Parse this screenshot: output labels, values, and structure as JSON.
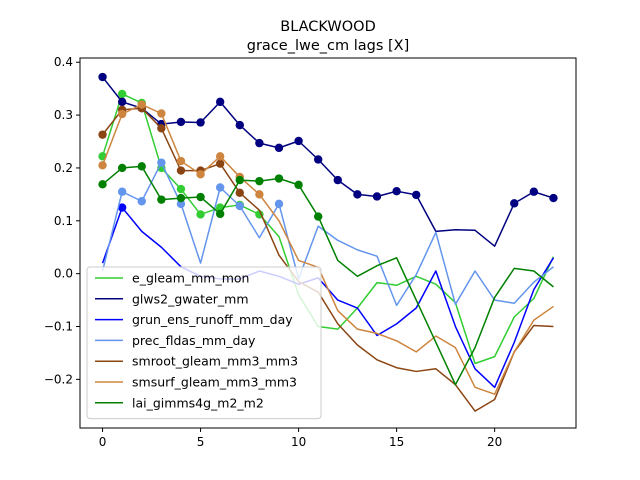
{
  "chart_data": {
    "type": "line",
    "title": "BLACKWOOD",
    "subtitle": "grace_lwe_cm lags [X]",
    "xlim": [
      -1.15,
      24.15
    ],
    "ylim": [
      -0.292,
      0.408
    ],
    "x_ticks": [
      0,
      5,
      10,
      15,
      20
    ],
    "y_ticks": [
      -0.2,
      -0.1,
      0.0,
      0.1,
      0.2,
      0.3,
      0.4
    ],
    "x_tick_labels": [
      "0",
      "5",
      "10",
      "15",
      "20"
    ],
    "y_tick_labels": [
      "−0.2",
      "−0.1",
      "0.0",
      "0.1",
      "0.2",
      "0.3",
      "0.4"
    ],
    "legend_position": "lower-left",
    "x": [
      0,
      1,
      2,
      3,
      4,
      5,
      6,
      7,
      8,
      9,
      10,
      11,
      12,
      13,
      14,
      15,
      16,
      17,
      18,
      19,
      20,
      21,
      22,
      23
    ],
    "series": [
      {
        "name": "e_gleam_mm_mon",
        "color": "#32cd32",
        "values": [
          0.222,
          0.34,
          0.323,
          0.2,
          0.16,
          0.112,
          0.125,
          0.13,
          0.112,
          0.07,
          -0.04,
          -0.1,
          -0.105,
          -0.065,
          -0.017,
          -0.022,
          -0.005,
          -0.02,
          -0.055,
          -0.17,
          -0.157,
          -0.082,
          -0.047,
          0.032
        ],
        "markers": [
          0,
          1,
          2,
          3,
          4,
          5,
          6,
          7,
          8
        ]
      },
      {
        "name": "glws2_gwater_mm",
        "color": "#000080",
        "values": [
          0.372,
          0.325,
          0.313,
          0.283,
          0.287,
          0.286,
          0.325,
          0.281,
          0.247,
          0.238,
          0.251,
          0.216,
          0.177,
          0.15,
          0.146,
          0.156,
          0.149,
          0.08,
          0.083,
          0.082,
          0.052,
          0.133,
          0.155,
          0.143
        ],
        "markers": [
          0,
          1,
          2,
          3,
          4,
          5,
          6,
          7,
          8,
          9,
          10,
          11,
          12,
          13,
          14,
          15,
          16,
          21,
          22,
          23
        ]
      },
      {
        "name": "grun_ens_runoff_mm_day",
        "color": "#0000ff",
        "values": [
          0.02,
          0.125,
          0.08,
          0.05,
          0.013,
          -0.005,
          -0.01,
          -0.01,
          0.005,
          -0.005,
          -0.02,
          -0.008,
          -0.05,
          -0.065,
          -0.117,
          -0.095,
          -0.065,
          0.005,
          -0.1,
          -0.18,
          -0.215,
          -0.13,
          -0.03,
          0.03
        ],
        "markers": [
          1
        ]
      },
      {
        "name": "prec_fldas_mm_day",
        "color": "#6495ed",
        "values": [
          0.005,
          0.155,
          0.137,
          0.21,
          0.132,
          0.02,
          0.163,
          0.128,
          0.068,
          0.132,
          -0.01,
          0.09,
          0.063,
          0.045,
          0.033,
          -0.06,
          -0.002,
          0.078,
          -0.058,
          0.005,
          -0.05,
          -0.056,
          -0.016,
          0.013
        ],
        "markers": [
          1,
          2,
          3,
          4,
          6,
          7,
          9
        ]
      },
      {
        "name": "smroot_gleam_mm3_mm3",
        "color": "#8b4513",
        "values": [
          0.263,
          0.31,
          0.313,
          0.275,
          0.195,
          0.195,
          0.208,
          0.153,
          0.12,
          0.035,
          -0.015,
          -0.035,
          -0.095,
          -0.135,
          -0.163,
          -0.178,
          -0.185,
          -0.18,
          -0.21,
          -0.26,
          -0.238,
          -0.148,
          -0.098,
          -0.1
        ],
        "markers": [
          0,
          1,
          2,
          3,
          4,
          5,
          6,
          7
        ]
      },
      {
        "name": "smsurf_gleam_mm3_mm3",
        "color": "#cd853f",
        "values": [
          0.205,
          0.302,
          0.32,
          0.303,
          0.213,
          0.188,
          0.222,
          0.183,
          0.15,
          0.1,
          0.025,
          0.012,
          -0.07,
          -0.105,
          -0.113,
          -0.127,
          -0.148,
          -0.118,
          -0.14,
          -0.215,
          -0.228,
          -0.148,
          -0.088,
          -0.062
        ],
        "markers": [
          0,
          1,
          2,
          3,
          4,
          5,
          6,
          7,
          8
        ]
      },
      {
        "name": "lai_gimms4g_m2_m2",
        "color": "#008000",
        "values": [
          0.169,
          0.2,
          0.203,
          0.14,
          0.143,
          0.145,
          0.113,
          0.177,
          0.175,
          0.18,
          0.168,
          0.108,
          0.025,
          -0.005,
          0.015,
          0.03,
          -0.05,
          -0.13,
          -0.21,
          -0.14,
          -0.045,
          0.01,
          0.005,
          -0.025
        ],
        "markers": [
          0,
          1,
          2,
          3,
          4,
          5,
          6,
          7,
          8,
          9,
          10,
          11
        ]
      }
    ]
  }
}
